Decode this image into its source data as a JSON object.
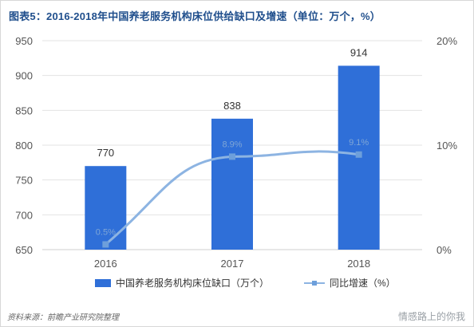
{
  "title": "图表5：2016-2018年中国养老服务机构床位供给缺口及增速（单位：万个，%）",
  "chart_data": {
    "type": "bar",
    "categories": [
      "2016",
      "2017",
      "2018"
    ],
    "series": [
      {
        "name": "中国养老服务机构床位缺口（万个）",
        "type": "bar",
        "axis": "left",
        "values": [
          770,
          838,
          914
        ],
        "labels": [
          "770",
          "838",
          "914"
        ]
      },
      {
        "name": "同比增速（%）",
        "type": "line",
        "axis": "right",
        "values": [
          0.5,
          8.9,
          9.1
        ],
        "labels": [
          "0.5%",
          "8.9%",
          "9.1%"
        ]
      }
    ],
    "y_left": {
      "min": 650,
      "max": 950,
      "ticks": [
        "650",
        "700",
        "750",
        "800",
        "850",
        "900",
        "950"
      ]
    },
    "y_right": {
      "min": 0,
      "max": 20,
      "ticks": [
        "0%",
        "10%",
        "20%"
      ]
    },
    "grid": true,
    "legend_position": "bottom",
    "colors": {
      "bar": "#2f6fd8",
      "line": "#8db4e2",
      "marker": "#6d9fdb",
      "grid": "#e3e3e3",
      "axis_text": "#555555"
    }
  },
  "source": "资料来源：前瞻产业研究院整理",
  "watermark": "情感路上的你我"
}
